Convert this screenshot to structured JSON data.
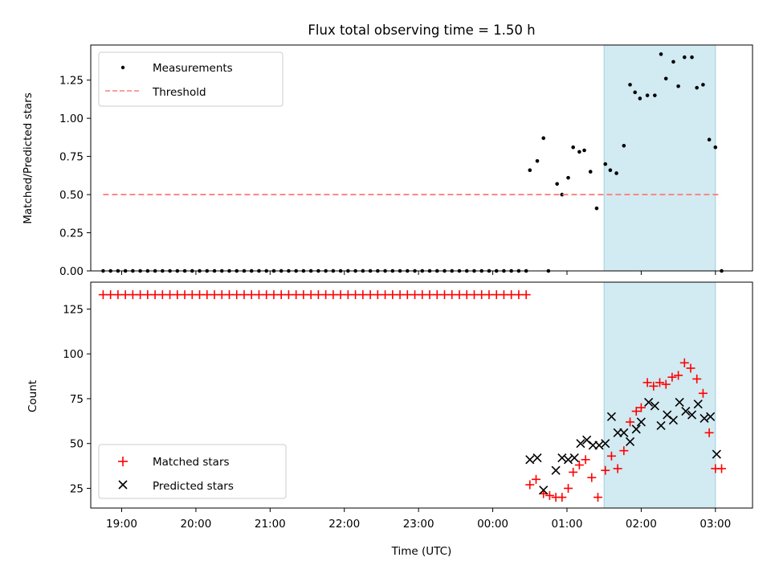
{
  "chart_data": [
    {
      "type": "scatter",
      "title": "Flux total observing time = 1.50 h",
      "xlabel": "",
      "ylabel": "Matched/Predicted stars",
      "xlim": [
        "18:35",
        "03:30"
      ],
      "ylim": [
        0,
        1.48
      ],
      "yticks": [
        "0.00",
        "0.25",
        "0.50",
        "0.75",
        "1.00",
        "1.25"
      ],
      "grid": false,
      "legend_position": "upper-left",
      "highlight_span": {
        "start": "01:30",
        "end": "03:00",
        "color": "#add8e6"
      },
      "series": [
        {
          "name": "Measurements",
          "style": "dot",
          "color": "#000000",
          "points": [
            [
              "18:45",
              0
            ],
            [
              "18:51",
              0
            ],
            [
              "18:57",
              0
            ],
            [
              "19:03",
              0
            ],
            [
              "19:09",
              0
            ],
            [
              "19:15",
              0
            ],
            [
              "19:21",
              0
            ],
            [
              "19:27",
              0
            ],
            [
              "19:33",
              0
            ],
            [
              "19:39",
              0
            ],
            [
              "19:45",
              0
            ],
            [
              "19:51",
              0
            ],
            [
              "19:57",
              0
            ],
            [
              "20:03",
              0
            ],
            [
              "20:09",
              0
            ],
            [
              "20:15",
              0
            ],
            [
              "20:21",
              0
            ],
            [
              "20:27",
              0
            ],
            [
              "20:33",
              0
            ],
            [
              "20:39",
              0
            ],
            [
              "20:45",
              0
            ],
            [
              "20:51",
              0
            ],
            [
              "20:57",
              0
            ],
            [
              "21:03",
              0
            ],
            [
              "21:09",
              0
            ],
            [
              "21:15",
              0
            ],
            [
              "21:21",
              0
            ],
            [
              "21:27",
              0
            ],
            [
              "21:33",
              0
            ],
            [
              "21:39",
              0
            ],
            [
              "21:45",
              0
            ],
            [
              "21:51",
              0
            ],
            [
              "21:57",
              0
            ],
            [
              "22:03",
              0
            ],
            [
              "22:09",
              0
            ],
            [
              "22:15",
              0
            ],
            [
              "22:21",
              0
            ],
            [
              "22:27",
              0
            ],
            [
              "22:33",
              0
            ],
            [
              "22:39",
              0
            ],
            [
              "22:45",
              0
            ],
            [
              "22:51",
              0
            ],
            [
              "22:57",
              0
            ],
            [
              "23:03",
              0
            ],
            [
              "23:09",
              0
            ],
            [
              "23:15",
              0
            ],
            [
              "23:21",
              0
            ],
            [
              "23:27",
              0
            ],
            [
              "23:33",
              0
            ],
            [
              "23:39",
              0
            ],
            [
              "23:45",
              0
            ],
            [
              "23:51",
              0
            ],
            [
              "23:57",
              0
            ],
            [
              "00:03",
              0
            ],
            [
              "00:09",
              0
            ],
            [
              "00:15",
              0
            ],
            [
              "00:21",
              0
            ],
            [
              "00:27",
              0
            ],
            [
              "00:30",
              0.66
            ],
            [
              "00:36",
              0.72
            ],
            [
              "00:41",
              0.87
            ],
            [
              "00:45",
              0
            ],
            [
              "00:52",
              0.57
            ],
            [
              "00:56",
              0.5
            ],
            [
              "01:01",
              0.61
            ],
            [
              "01:05",
              0.81
            ],
            [
              "01:10",
              0.78
            ],
            [
              "01:14",
              0.79
            ],
            [
              "01:19",
              0.65
            ],
            [
              "01:24",
              0.41
            ],
            [
              "01:31",
              0.7
            ],
            [
              "01:35",
              0.66
            ],
            [
              "01:40",
              0.64
            ],
            [
              "01:46",
              0.82
            ],
            [
              "01:51",
              1.22
            ],
            [
              "01:55",
              1.17
            ],
            [
              "01:59",
              1.13
            ],
            [
              "02:05",
              1.15
            ],
            [
              "02:11",
              1.15
            ],
            [
              "02:16",
              1.42
            ],
            [
              "02:20",
              1.26
            ],
            [
              "02:26",
              1.37
            ],
            [
              "02:30",
              1.21
            ],
            [
              "02:35",
              1.4
            ],
            [
              "02:41",
              1.4
            ],
            [
              "02:45",
              1.2
            ],
            [
              "02:50",
              1.22
            ],
            [
              "02:55",
              0.86
            ],
            [
              "03:00",
              0.81
            ],
            [
              "03:05",
              0
            ]
          ]
        },
        {
          "name": "Threshold",
          "style": "dashed-line",
          "color": "#ff7f7f",
          "points": [
            [
              "18:45",
              0.5
            ],
            [
              "03:05",
              0.5
            ]
          ]
        }
      ]
    },
    {
      "type": "scatter",
      "title": "",
      "xlabel": "Time (UTC)",
      "ylabel": "Count",
      "xlim": [
        "18:35",
        "03:30"
      ],
      "ylim": [
        14,
        140
      ],
      "yticks": [
        "25",
        "50",
        "75",
        "100",
        "125"
      ],
      "xticks": [
        "19:00",
        "20:00",
        "21:00",
        "22:00",
        "23:00",
        "00:00",
        "01:00",
        "02:00",
        "03:00"
      ],
      "grid": false,
      "legend_position": "lower-left",
      "highlight_span": {
        "start": "01:30",
        "end": "03:00",
        "color": "#add8e6"
      },
      "series": [
        {
          "name": "Matched stars",
          "style": "plus",
          "color": "#ff0000",
          "points": [
            [
              "18:45",
              133
            ],
            [
              "18:51",
              133
            ],
            [
              "18:57",
              133
            ],
            [
              "19:03",
              133
            ],
            [
              "19:09",
              133
            ],
            [
              "19:15",
              133
            ],
            [
              "19:21",
              133
            ],
            [
              "19:27",
              133
            ],
            [
              "19:33",
              133
            ],
            [
              "19:39",
              133
            ],
            [
              "19:45",
              133
            ],
            [
              "19:51",
              133
            ],
            [
              "19:57",
              133
            ],
            [
              "20:03",
              133
            ],
            [
              "20:09",
              133
            ],
            [
              "20:15",
              133
            ],
            [
              "20:21",
              133
            ],
            [
              "20:27",
              133
            ],
            [
              "20:33",
              133
            ],
            [
              "20:39",
              133
            ],
            [
              "20:45",
              133
            ],
            [
              "20:51",
              133
            ],
            [
              "20:57",
              133
            ],
            [
              "21:03",
              133
            ],
            [
              "21:09",
              133
            ],
            [
              "21:15",
              133
            ],
            [
              "21:21",
              133
            ],
            [
              "21:27",
              133
            ],
            [
              "21:33",
              133
            ],
            [
              "21:39",
              133
            ],
            [
              "21:45",
              133
            ],
            [
              "21:51",
              133
            ],
            [
              "21:57",
              133
            ],
            [
              "22:03",
              133
            ],
            [
              "22:09",
              133
            ],
            [
              "22:15",
              133
            ],
            [
              "22:21",
              133
            ],
            [
              "22:27",
              133
            ],
            [
              "22:33",
              133
            ],
            [
              "22:39",
              133
            ],
            [
              "22:45",
              133
            ],
            [
              "22:51",
              133
            ],
            [
              "22:57",
              133
            ],
            [
              "23:03",
              133
            ],
            [
              "23:09",
              133
            ],
            [
              "23:15",
              133
            ],
            [
              "23:21",
              133
            ],
            [
              "23:27",
              133
            ],
            [
              "23:33",
              133
            ],
            [
              "23:39",
              133
            ],
            [
              "23:45",
              133
            ],
            [
              "23:51",
              133
            ],
            [
              "23:57",
              133
            ],
            [
              "00:03",
              133
            ],
            [
              "00:09",
              133
            ],
            [
              "00:15",
              133
            ],
            [
              "00:21",
              133
            ],
            [
              "00:27",
              133
            ],
            [
              "00:30",
              27
            ],
            [
              "00:35",
              30
            ],
            [
              "00:41",
              22
            ],
            [
              "00:46",
              21
            ],
            [
              "00:51",
              20
            ],
            [
              "00:56",
              20
            ],
            [
              "01:01",
              25
            ],
            [
              "01:05",
              34
            ],
            [
              "01:10",
              38
            ],
            [
              "01:15",
              41
            ],
            [
              "01:20",
              31
            ],
            [
              "01:25",
              20
            ],
            [
              "01:31",
              35
            ],
            [
              "01:36",
              43
            ],
            [
              "01:41",
              36
            ],
            [
              "01:46",
              46
            ],
            [
              "01:51",
              62
            ],
            [
              "01:56",
              68
            ],
            [
              "02:00",
              70
            ],
            [
              "02:05",
              84
            ],
            [
              "02:10",
              82
            ],
            [
              "02:15",
              84
            ],
            [
              "02:20",
              83
            ],
            [
              "02:25",
              87
            ],
            [
              "02:30",
              88
            ],
            [
              "02:35",
              95
            ],
            [
              "02:40",
              92
            ],
            [
              "02:45",
              86
            ],
            [
              "02:50",
              78
            ],
            [
              "02:55",
              56
            ],
            [
              "03:00",
              36
            ],
            [
              "03:05",
              36
            ]
          ]
        },
        {
          "name": "Predicted stars",
          "style": "x",
          "color": "#000000",
          "points": [
            [
              "00:30",
              41
            ],
            [
              "00:36",
              42
            ],
            [
              "00:41",
              24
            ],
            [
              "00:51",
              35
            ],
            [
              "00:56",
              42
            ],
            [
              "01:01",
              41
            ],
            [
              "01:06",
              42
            ],
            [
              "01:11",
              50
            ],
            [
              "01:16",
              52
            ],
            [
              "01:21",
              49
            ],
            [
              "01:26",
              49
            ],
            [
              "01:31",
              50
            ],
            [
              "01:36",
              65
            ],
            [
              "01:41",
              56
            ],
            [
              "01:46",
              56
            ],
            [
              "01:51",
              51
            ],
            [
              "01:56",
              58
            ],
            [
              "02:00",
              62
            ],
            [
              "02:06",
              73
            ],
            [
              "02:11",
              71
            ],
            [
              "02:16",
              60
            ],
            [
              "02:21",
              66
            ],
            [
              "02:26",
              63
            ],
            [
              "02:31",
              73
            ],
            [
              "02:36",
              68
            ],
            [
              "02:41",
              66
            ],
            [
              "02:46",
              72
            ],
            [
              "02:51",
              64
            ],
            [
              "02:56",
              65
            ],
            [
              "03:01",
              44
            ]
          ]
        }
      ]
    }
  ]
}
